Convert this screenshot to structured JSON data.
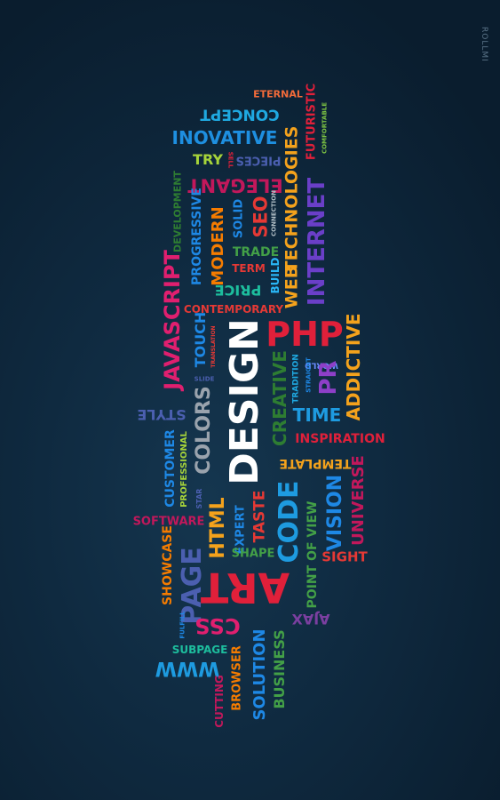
{
  "signature": "ROLLMI",
  "words": [
    {
      "text": "ETERNAL",
      "color": "#f26b3a"
    },
    {
      "text": "CONCEPT",
      "color": "#1fa9e1"
    },
    {
      "text": "FUTURISTIC",
      "color": "#e0203a"
    },
    {
      "text": "COMFORTABLE",
      "color": "#7cc243"
    },
    {
      "text": "INOVATIVE",
      "color": "#1e8fe0"
    },
    {
      "text": "TECHNOLOGIES",
      "color": "#f4a21c"
    },
    {
      "text": "TRY",
      "color": "#a6d33a"
    },
    {
      "text": "SELL",
      "color": "#e0203a"
    },
    {
      "text": "PIECES",
      "color": "#4b5fb0"
    },
    {
      "text": "ELEGANT",
      "color": "#c2185b"
    },
    {
      "text": "DEVELOPMENT",
      "color": "#2e7d32"
    },
    {
      "text": "PROGRESSIVE",
      "color": "#1e88e5"
    },
    {
      "text": "MODERN",
      "color": "#f57c00"
    },
    {
      "text": "SOLID",
      "color": "#1e88e5"
    },
    {
      "text": "SEO",
      "color": "#e53935"
    },
    {
      "text": "CONNECTION",
      "color": "#b0bec5"
    },
    {
      "text": "WEB",
      "color": "#f4a21c"
    },
    {
      "text": "INTERNET",
      "color": "#6a3fc8"
    },
    {
      "text": "TRADE",
      "color": "#43a047"
    },
    {
      "text": "TERM",
      "color": "#e53935"
    },
    {
      "text": "BUILD",
      "color": "#29b6f6"
    },
    {
      "text": "PRICE",
      "color": "#1dbd9d"
    },
    {
      "text": "JAVASCRIPT",
      "color": "#e01f6f"
    },
    {
      "text": "CONTEMPORARY",
      "color": "#e53935"
    },
    {
      "text": "PHP",
      "color": "#e0203a"
    },
    {
      "text": "ADDICTIVE",
      "color": "#f4a21c"
    },
    {
      "text": "TOUCH",
      "color": "#1e88e5"
    },
    {
      "text": "TRANSLATION",
      "color": "#e53935"
    },
    {
      "text": "SLIDE",
      "color": "#4b5fb0"
    },
    {
      "text": "DESIGN",
      "color": "#ffffff"
    },
    {
      "text": "WORLD",
      "color": "#6a8cff"
    },
    {
      "text": "STRAIGHT",
      "color": "#1e88e5"
    },
    {
      "text": "TRADITION",
      "color": "#1fa9e1"
    },
    {
      "text": "PR",
      "color": "#8e3fc8"
    },
    {
      "text": "CREATIVE",
      "color": "#2e7d32"
    },
    {
      "text": "TIME",
      "color": "#1e9be0"
    },
    {
      "text": "STYLE",
      "color": "#4b5fb0"
    },
    {
      "text": "COLORS",
      "color": "#9aa3ad"
    },
    {
      "text": "CUSTOMER",
      "color": "#1e88e5"
    },
    {
      "text": "PROFESSIONAL",
      "color": "#a6d33a"
    },
    {
      "text": "INSPIRATION",
      "color": "#e0203a"
    },
    {
      "text": "TEMPLATE",
      "color": "#f4a21c"
    },
    {
      "text": "STAR",
      "color": "#4b5fb0"
    },
    {
      "text": "HTML",
      "color": "#f4a21c"
    },
    {
      "text": "EXPERT",
      "color": "#1e88e5"
    },
    {
      "text": "TASTE",
      "color": "#e53935"
    },
    {
      "text": "CODE",
      "color": "#1e9be0"
    },
    {
      "text": "POINT OF VIEW",
      "color": "#43a047"
    },
    {
      "text": "VISION",
      "color": "#1e88e5"
    },
    {
      "text": "UNIVERSE",
      "color": "#c2185b"
    },
    {
      "text": "SOFTWARE",
      "color": "#c2185b"
    },
    {
      "text": "SHAPE",
      "color": "#43a047"
    },
    {
      "text": "SHOWCASE",
      "color": "#f57c00"
    },
    {
      "text": "PAGE",
      "color": "#4b5fb0"
    },
    {
      "text": "ART",
      "color": "#e0203a"
    },
    {
      "text": "SIGHT",
      "color": "#e53935"
    },
    {
      "text": "AJAX",
      "color": "#7b3fa0"
    },
    {
      "text": "FULFILL",
      "color": "#1e88e5"
    },
    {
      "text": "CSS",
      "color": "#e01f6f"
    },
    {
      "text": "SOLUTION",
      "color": "#1e88e5"
    },
    {
      "text": "BUSINESS",
      "color": "#43a047"
    },
    {
      "text": "SUBPAGE",
      "color": "#1dbd9d"
    },
    {
      "text": "WWW",
      "color": "#1e9be0"
    },
    {
      "text": "BROWSER",
      "color": "#f57c00"
    },
    {
      "text": "CUTTING",
      "color": "#c2185b"
    }
  ]
}
